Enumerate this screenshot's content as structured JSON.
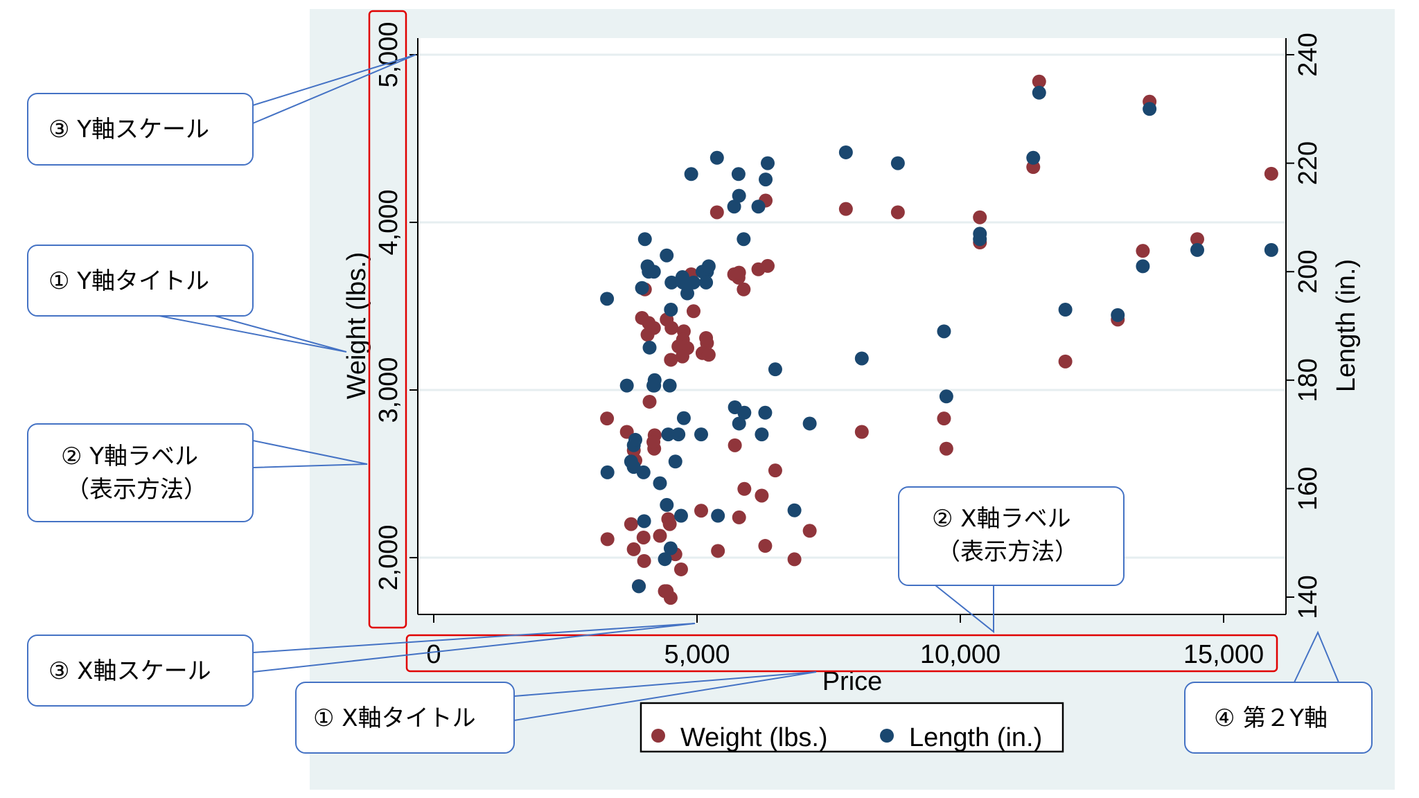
{
  "chart_data": {
    "type": "scatter",
    "xlabel": "Price",
    "ylabel": "Weight (lbs.)",
    "y2label": "Length (in.)",
    "xlim": [
      0,
      16000
    ],
    "ylim": [
      1700,
      5100
    ],
    "y2lim": [
      140,
      240
    ],
    "xticks": [
      0,
      5000,
      10000,
      15000
    ],
    "xtick_labels": [
      "0",
      "5,000",
      "10,000",
      "15,000"
    ],
    "yticks": [
      2000,
      3000,
      4000,
      5000
    ],
    "ytick_labels": [
      "2,000",
      "3,000",
      "4,000",
      "5,000"
    ],
    "y2ticks": [
      140,
      160,
      180,
      200,
      220,
      240
    ],
    "y2tick_labels": [
      "140",
      "160",
      "180",
      "200",
      "220",
      "240"
    ],
    "grid": true,
    "legend_position": "bottom",
    "series": [
      {
        "name": "Weight (lbs.)",
        "axis": "left",
        "color": "#90353b"
      },
      {
        "name": "Length (in.)",
        "axis": "right",
        "color": "#1a476f"
      }
    ],
    "points": [
      [
        4099,
        2930,
        186
      ],
      [
        4749,
        3350,
        173
      ],
      [
        3799,
        2640,
        168
      ],
      [
        4816,
        3250,
        196
      ],
      [
        7827,
        4080,
        222
      ],
      [
        5788,
        3670,
        218
      ],
      [
        4453,
        2230,
        170
      ],
      [
        5189,
        3280,
        200
      ],
      [
        10372,
        3880,
        207
      ],
      [
        4082,
        3400,
        200
      ],
      [
        11385,
        4330,
        221
      ],
      [
        14500,
        3900,
        204
      ],
      [
        15906,
        4290,
        204
      ],
      [
        3299,
        2110,
        163
      ],
      [
        5705,
        3690,
        212
      ],
      [
        4504,
        3180,
        193
      ],
      [
        5104,
        3220,
        200
      ],
      [
        3667,
        2750,
        179
      ],
      [
        3955,
        3430,
        197
      ],
      [
        3984,
        2120,
        163
      ],
      [
        4010,
        3600,
        206
      ],
      [
        5886,
        3600,
        206
      ],
      [
        6342,
        3740,
        220
      ],
      [
        4389,
        1800,
        147
      ],
      [
        4187,
        2650,
        179
      ],
      [
        11497,
        4840,
        233
      ],
      [
        13594,
        4720,
        230
      ],
      [
        13466,
        3830,
        201
      ],
      [
        3829,
        2580,
        169
      ],
      [
        5379,
        4060,
        221
      ],
      [
        6165,
        3720,
        212
      ],
      [
        4516,
        3370,
        198
      ],
      [
        6303,
        4130,
        217
      ],
      [
        3291,
        2830,
        195
      ],
      [
        8814,
        4060,
        220
      ],
      [
        5172,
        3310,
        198
      ],
      [
        4733,
        3300,
        198
      ],
      [
        4890,
        3690,
        218
      ],
      [
        4181,
        3370,
        200
      ],
      [
        4195,
        2730,
        180
      ],
      [
        10371,
        4030,
        206
      ],
      [
        4647,
        3260,
        170
      ],
      [
        4425,
        1800,
        157
      ],
      [
        4482,
        2200,
        179
      ],
      [
        6486,
        2520,
        182
      ],
      [
        4060,
        3330,
        201
      ],
      [
        5798,
        3700,
        214
      ],
      [
        4934,
        3470,
        198
      ],
      [
        5222,
        3210,
        201
      ],
      [
        4723,
        3200,
        199
      ],
      [
        4424,
        3420,
        203
      ],
      [
        4172,
        2690,
        179
      ],
      [
        9690,
        2830,
        189
      ],
      [
        6295,
        2070,
        174
      ],
      [
        9735,
        2650,
        177
      ],
      [
        6229,
        2370,
        170
      ],
      [
        4589,
        2020,
        165
      ],
      [
        5079,
        2280,
        170
      ],
      [
        8129,
        2750,
        184
      ],
      [
        4296,
        2130,
        161
      ],
      [
        5799,
        2240,
        172
      ],
      [
        4499,
        1760,
        149
      ],
      [
        3995,
        1980,
        154
      ],
      [
        12990,
        3420,
        192
      ],
      [
        3895,
        1830,
        142
      ],
      [
        3798,
        2050,
        164
      ],
      [
        5899,
        2410,
        174
      ],
      [
        3748,
        2200,
        165
      ],
      [
        5719,
        2670,
        175
      ],
      [
        7140,
        2160,
        172
      ],
      [
        5397,
        2040,
        155
      ],
      [
        4697,
        1930,
        155
      ],
      [
        6850,
        1990,
        156
      ],
      [
        11995,
        3170,
        193
      ]
    ]
  },
  "callouts": {
    "y_scale": "③ Y軸スケール",
    "y_title": "① Y軸タイトル",
    "y_label_1": "② Y軸ラベル",
    "y_label_2": "（表示方法）",
    "x_scale": "③ X軸スケール",
    "x_title": "① X軸タイトル",
    "x_label_1": "② X軸ラベル",
    "x_label_2": "（表示方法）",
    "y2_axis": "④ 第２Y軸"
  },
  "colors": {
    "background": "#eaf2f3",
    "plot": "#ffffff",
    "callout_border": "#4472c4",
    "highlight": "#e00000"
  }
}
